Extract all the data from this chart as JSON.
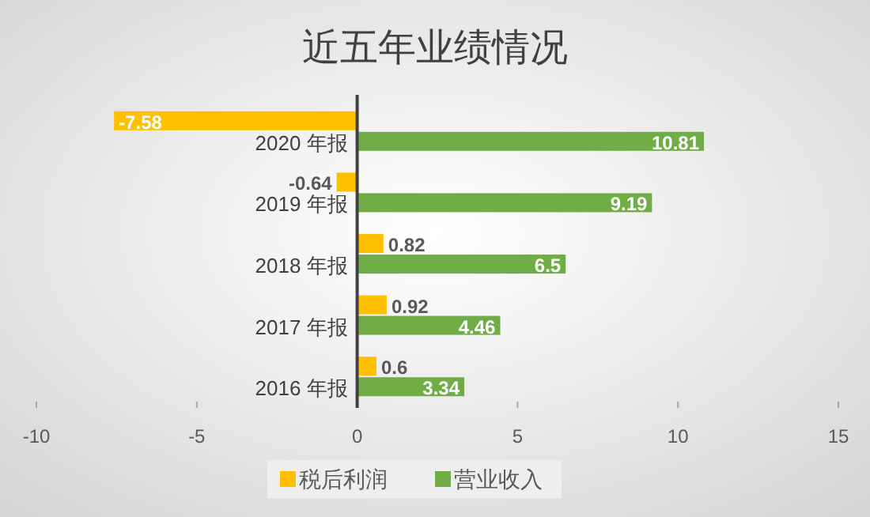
{
  "chart_data": {
    "type": "bar",
    "orientation": "horizontal",
    "title": "近五年业绩情况",
    "categories": [
      "2020 年报",
      "2019 年报",
      "2018 年报",
      "2017 年报",
      "2016 年报"
    ],
    "series": [
      {
        "name": "税后利润",
        "color": "#ffc000",
        "values": [
          -7.58,
          -0.64,
          0.82,
          0.92,
          0.6
        ]
      },
      {
        "name": "营业收入",
        "color": "#70ad47",
        "values": [
          10.81,
          9.19,
          6.5,
          4.46,
          3.34
        ]
      }
    ],
    "xlim": [
      -10,
      15
    ],
    "xticks": [
      -10,
      -5,
      0,
      5,
      10,
      15
    ],
    "data_labels": true,
    "legend": "bottom",
    "grid": false
  }
}
